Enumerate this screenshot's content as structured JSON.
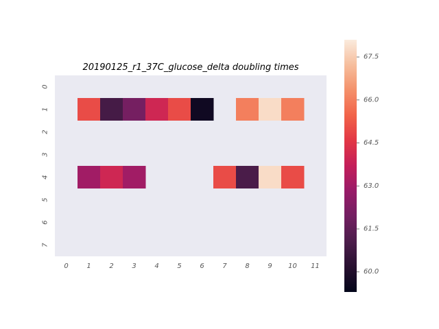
{
  "chart_data": {
    "type": "heatmap",
    "title": "20190125_r1_37C_glucose_delta doubling times",
    "xlabel": "",
    "ylabel": "",
    "x_tick_labels": [
      "0",
      "1",
      "2",
      "3",
      "4",
      "5",
      "6",
      "7",
      "8",
      "9",
      "10",
      "11"
    ],
    "y_tick_labels": [
      "0",
      "1",
      "2",
      "3",
      "4",
      "5",
      "6",
      "7"
    ],
    "rows": 8,
    "cols": 12,
    "values": [
      [
        null,
        null,
        null,
        null,
        null,
        null,
        null,
        null,
        null,
        null,
        null,
        null
      ],
      [
        null,
        65.0,
        60.9,
        62.0,
        64.0,
        65.0,
        59.6,
        null,
        66.0,
        67.8,
        66.0,
        null
      ],
      [
        null,
        null,
        null,
        null,
        null,
        null,
        null,
        null,
        null,
        null,
        null,
        null
      ],
      [
        null,
        null,
        null,
        null,
        null,
        null,
        null,
        null,
        null,
        null,
        null,
        null
      ],
      [
        null,
        63.0,
        64.0,
        63.0,
        null,
        null,
        null,
        65.0,
        61.0,
        67.8,
        65.0,
        null
      ],
      [
        null,
        null,
        null,
        null,
        null,
        null,
        null,
        null,
        null,
        null,
        null,
        null
      ],
      [
        null,
        null,
        null,
        null,
        null,
        null,
        null,
        null,
        null,
        null,
        null,
        null
      ],
      [
        null,
        null,
        null,
        null,
        null,
        null,
        null,
        null,
        null,
        null,
        null,
        null
      ]
    ],
    "colorbar": {
      "colormap": "rocket",
      "vmin": 59.3,
      "vmax": 68.1,
      "tick_values": [
        60.0,
        61.5,
        63.0,
        64.5,
        66.0,
        67.5
      ],
      "tick_labels": [
        "60.0",
        "61.5",
        "63.0",
        "64.5",
        "66.0",
        "67.5"
      ]
    },
    "background_color": "#eaeaf2",
    "grid": false
  }
}
